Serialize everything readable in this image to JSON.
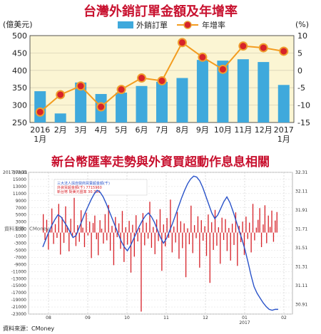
{
  "chart_data": [
    {
      "type": "bar",
      "title": "台灣外銷訂單金額及年增率",
      "ylabel": "(億美元)",
      "y2label": "(%)",
      "ylim": [
        250,
        500
      ],
      "y2lim": [
        -15,
        10
      ],
      "yticks": [
        250,
        300,
        350,
        400,
        450,
        500
      ],
      "y2ticks": [
        -15,
        -10,
        -5,
        0,
        5,
        10
      ],
      "categories": [
        "2016\n1月",
        "2月",
        "3月",
        "4月",
        "5月",
        "6月",
        "7月",
        "8月",
        "9月",
        "10月",
        "11月",
        "12月",
        "2017\n1月"
      ],
      "series": [
        {
          "name": "外銷訂單",
          "type": "bar",
          "axis": "left",
          "color": "#3fa9dc",
          "values": [
            340,
            276,
            365,
            332,
            336,
            355,
            367,
            378,
            430,
            428,
            432,
            424,
            358
          ]
        },
        {
          "name": "年增率",
          "type": "line",
          "axis": "right",
          "color": "#f39c1f",
          "marker": "#d7232a",
          "values": [
            -12.0,
            -7.0,
            -4.5,
            -10.5,
            -5.5,
            -2.2,
            -3.0,
            8.0,
            3.8,
            0.3,
            7.0,
            6.5,
            5.5
          ]
        }
      ],
      "grid": true,
      "legend": "top"
    },
    {
      "type": "line",
      "title": "新台幣匯率走勢與外資買超動作息息相關",
      "date_label": "2017/02/21",
      "legend_lines": [
        "三大法人與自營商買賣超金額(千)",
        "外資買超金額(千)  7715960",
        "新台幣  對美元匯率  30.793"
      ],
      "ylim": [
        -23000,
        17000
      ],
      "yticks": [
        17000,
        15000,
        13000,
        11000,
        9000,
        7000,
        5000,
        3000,
        1000,
        -1000,
        -3000,
        -5000,
        -7000,
        -9000,
        -11000,
        -13000,
        -15000,
        -17000,
        -19000,
        -21000,
        -23000
      ],
      "y2lim": [
        30.81,
        32.31
      ],
      "y2ticks": [
        32.31,
        32.11,
        31.91,
        31.71,
        31.51,
        31.31,
        31.11,
        30.91
      ],
      "x_ticks": [
        "08",
        "09",
        "10",
        "11",
        "12",
        "01",
        "02"
      ],
      "x_year_label": "2017",
      "series": [
        {
          "name": "外資買超",
          "type": "bar",
          "axis": "left",
          "color": "#d7232a",
          "values": [
            5200,
            -2100,
            3600,
            -4800,
            1200,
            6800,
            -3200,
            2400,
            -1500,
            8100,
            -6200,
            4300,
            -2900,
            7400,
            1800,
            -5300,
            3900,
            -1200,
            9800,
            -3800,
            2100,
            -2600,
            6300,
            1400,
            -4100,
            5600,
            -800,
            3100,
            -7200,
            2700,
            4800,
            -1900,
            -6400,
            3500,
            1100,
            -3100,
            5200,
            -2200,
            7800,
            -5100,
            1900,
            -9200,
            4400,
            -1300,
            2600,
            -4600,
            6100,
            -8300,
            1500,
            -3400,
            3300,
            -11300,
            2200,
            -6800,
            4900,
            -2500,
            1300,
            -22300,
            5500,
            -3600,
            2800,
            -1700,
            8700,
            -4300,
            1600,
            -6100,
            3700,
            -2400,
            6600,
            -10800,
            2300,
            -3900,
            4100,
            -1500,
            9300,
            -5600,
            1700,
            -2800,
            5800,
            -7400,
            3200,
            -4400,
            2600,
            -12600,
            1200,
            -3300,
            7600,
            -5800,
            2100,
            -1600,
            4600,
            -9900,
            3500,
            -2300,
            1800,
            -6600,
            5100,
            -14200,
            2900,
            -4900,
            6400,
            -3700,
            1500,
            -8800,
            4200,
            -2100,
            3800,
            -5200,
            1300,
            -7900,
            2500,
            -3500,
            5700,
            -9400,
            1900,
            -2700,
            3100,
            -6300,
            4500,
            -1800,
            2800,
            -5600,
            8100,
            -2200,
            1400,
            3600,
            6900,
            -4100,
            2300,
            7700,
            -3000,
            4800,
            1600,
            6200,
            -2600,
            3400,
            5800
          ]
        },
        {
          "name": "新台幣匯率",
          "type": "line",
          "axis": "right",
          "color": "#2a53c9",
          "values": [
            31.52,
            31.6,
            31.68,
            31.75,
            31.81,
            31.86,
            31.84,
            31.79,
            31.74,
            31.68,
            31.62,
            31.64,
            31.72,
            31.8,
            31.88,
            31.95,
            32.02,
            32.08,
            32.12,
            32.1,
            32.05,
            31.98,
            31.9,
            31.82,
            31.74,
            31.66,
            31.58,
            31.52,
            31.48,
            31.53,
            31.6,
            31.67,
            31.74,
            31.8,
            31.85,
            31.88,
            31.84,
            31.78,
            31.7,
            31.62,
            31.56,
            31.61,
            31.69,
            31.77,
            31.86,
            31.95,
            32.04,
            32.12,
            32.19,
            32.24,
            32.27,
            32.26,
            32.22,
            32.15,
            32.06,
            31.97,
            31.88,
            31.82,
            31.86,
            31.93,
            32.0,
            32.05,
            31.99,
            31.9,
            31.8,
            31.7,
            31.6,
            31.49,
            31.36,
            31.22,
            31.1,
            31.03,
            30.98,
            30.93,
            30.89,
            30.86,
            30.85,
            30.86,
            30.86
          ]
        }
      ]
    }
  ],
  "source_text": "資料來源：CMoney",
  "watermark_text": "資料來源：CMoney"
}
